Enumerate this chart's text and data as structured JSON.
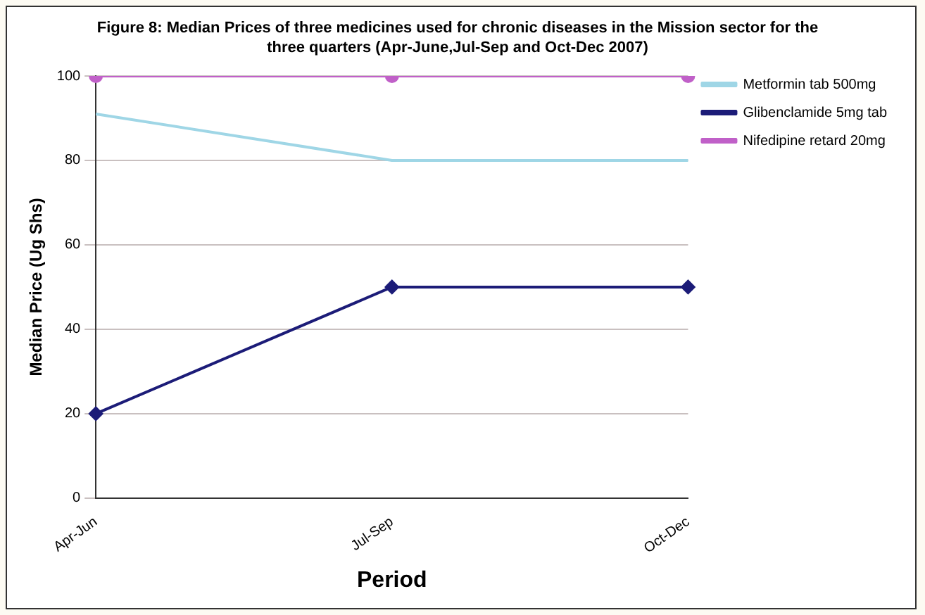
{
  "chart_data": {
    "type": "line",
    "title": "Figure 8: Median Prices of three medicines used for chronic diseases in the Mission sector for the three quarters (Apr-June,Jul-Sep and Oct-Dec 2007)",
    "xlabel": "Period",
    "ylabel": "Median Price (Ug Shs)",
    "categories": [
      "Apr-Jun",
      "Jul-Sep",
      "Oct-Dec"
    ],
    "series": [
      {
        "name": "Metformin tab 500mg",
        "color": "#9fd6e6",
        "values": [
          91,
          80,
          80
        ],
        "marker": "none"
      },
      {
        "name": "Glibenclamide 5mg tab",
        "color": "#1c1c78",
        "values": [
          20,
          50,
          50
        ],
        "marker": "diamond"
      },
      {
        "name": "Nifedipine retard 20mg",
        "color": "#c060c8",
        "values": [
          100,
          100,
          100
        ],
        "marker": "circle"
      }
    ],
    "ylim": [
      0,
      100
    ],
    "yticks": [
      0,
      20,
      40,
      60,
      80,
      100
    ],
    "grid": "y",
    "legend": "right"
  }
}
